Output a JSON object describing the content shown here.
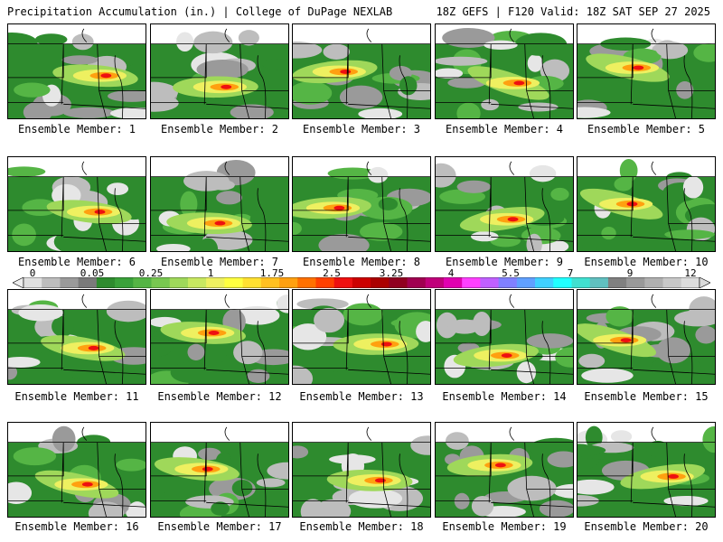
{
  "header": {
    "title_left": "Precipitation Accumulation (in.) | College of DuPage NEXLAB",
    "title_right": "18Z GEFS | F120 Valid: 18Z SAT SEP 27 2025"
  },
  "members": [
    {
      "label": "Ensemble Member: 1"
    },
    {
      "label": "Ensemble Member: 2"
    },
    {
      "label": "Ensemble Member: 3"
    },
    {
      "label": "Ensemble Member: 4"
    },
    {
      "label": "Ensemble Member: 5"
    },
    {
      "label": "Ensemble Member: 6"
    },
    {
      "label": "Ensemble Member: 7"
    },
    {
      "label": "Ensemble Member: 8"
    },
    {
      "label": "Ensemble Member: 9"
    },
    {
      "label": "Ensemble Member: 10"
    },
    {
      "label": "Ensemble Member: 11"
    },
    {
      "label": "Ensemble Member: 12"
    },
    {
      "label": "Ensemble Member: 13"
    },
    {
      "label": "Ensemble Member: 14"
    },
    {
      "label": "Ensemble Member: 15"
    },
    {
      "label": "Ensemble Member: 16"
    },
    {
      "label": "Ensemble Member: 17"
    },
    {
      "label": "Ensemble Member: 18"
    },
    {
      "label": "Ensemble Member: 19"
    },
    {
      "label": "Ensemble Member: 20"
    }
  ],
  "colorbar": {
    "tick_labels": [
      "0",
      "0.05",
      "0.25",
      "1",
      "1.75",
      "2.5",
      "3.25",
      "4",
      "5.5",
      "7",
      "9",
      "12"
    ],
    "colors": [
      "#e0e0e0",
      "#bdbdbd",
      "#9a9a9a",
      "#7a7a7a",
      "#2e8b2e",
      "#3aa13a",
      "#55b545",
      "#78c850",
      "#9fd85a",
      "#c8e860",
      "#eef060",
      "#ffff40",
      "#ffe030",
      "#ffc020",
      "#ffa010",
      "#ff7000",
      "#ff4000",
      "#ee1010",
      "#cc0000",
      "#aa0000",
      "#900020",
      "#a00050",
      "#c0007a",
      "#e000b0",
      "#ff40ff",
      "#c060ff",
      "#8080ff",
      "#60a0ff",
      "#40d0ff",
      "#20ffff",
      "#40e0d0",
      "#60c0c0",
      "#808080",
      "#999999",
      "#b0b0b0",
      "#c8c8c8",
      "#dcdcdc"
    ]
  }
}
